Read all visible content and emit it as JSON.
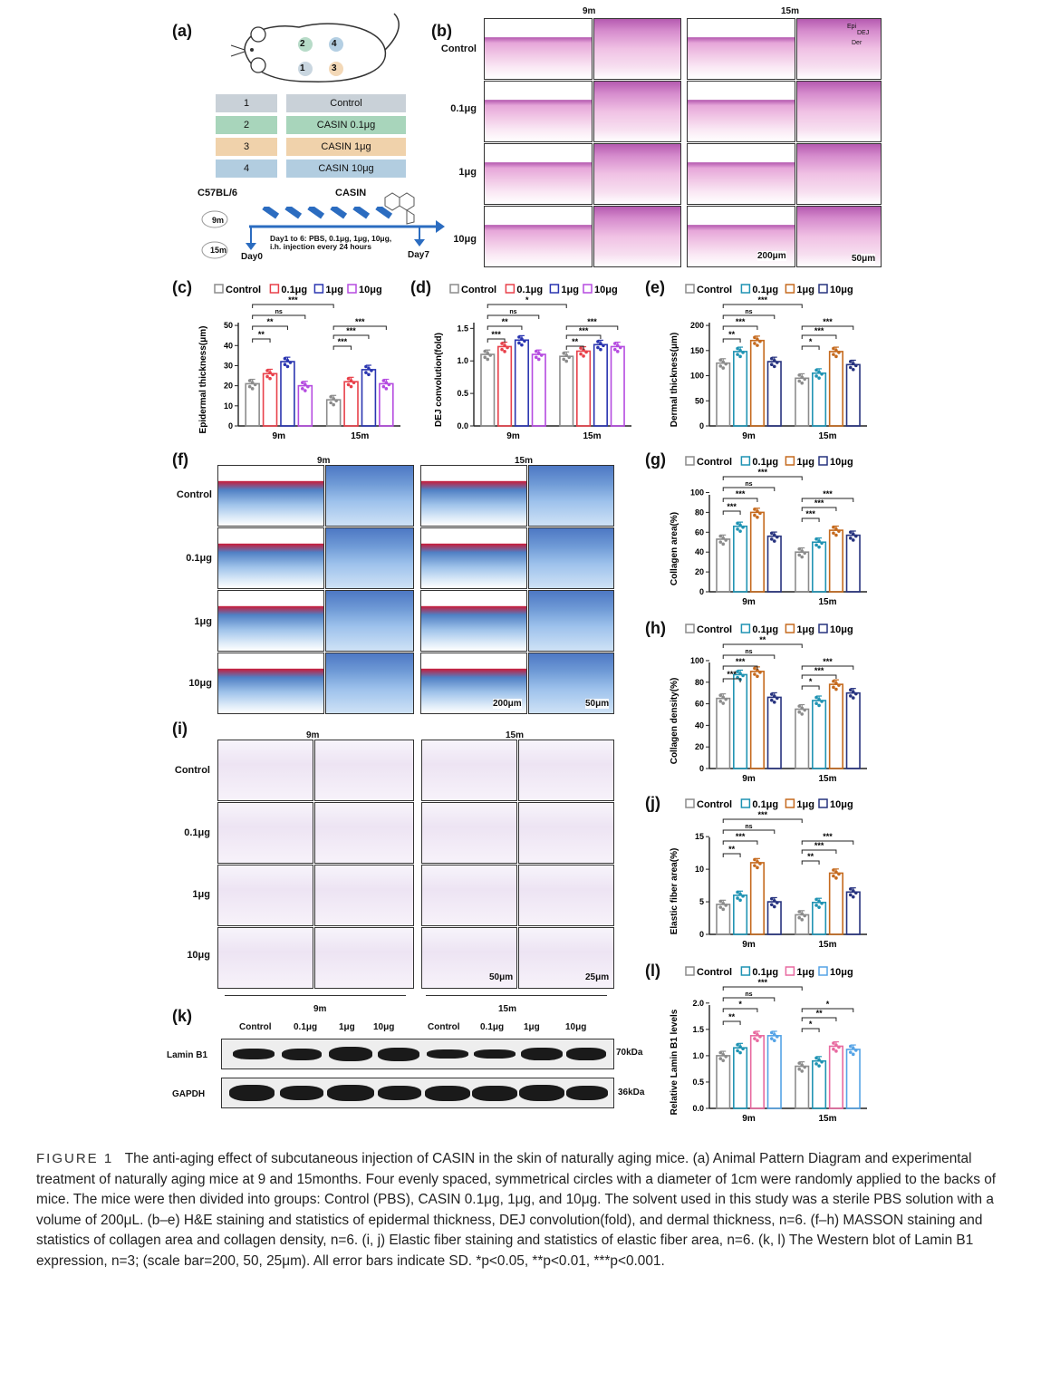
{
  "panel_labels": {
    "a": "(a)",
    "b": "(b)",
    "c": "(c)",
    "d": "(d)",
    "e": "(e)",
    "f": "(f)",
    "g": "(g)",
    "h": "(h)",
    "i": "(i)",
    "j": "(j)",
    "k": "(k)",
    "l": "(l)"
  },
  "panel_a": {
    "mouse_circles": [
      "2",
      "4",
      "1",
      "3"
    ],
    "table": [
      {
        "num": "1",
        "group": "Control"
      },
      {
        "num": "2",
        "group": "CASIN 0.1μg"
      },
      {
        "num": "3",
        "group": "CASIN  1μg"
      },
      {
        "num": "4",
        "group": "CASIN  10μg"
      }
    ],
    "strain": "C57BL/6",
    "drug": "CASIN",
    "age_9m": "9m",
    "age_15m": "15m",
    "day0": "Day0",
    "day7": "Day7",
    "protocol_line1": "Day1 to 6: PBS, 0.1μg, 1μg, 10μg,",
    "protocol_line2": "i.h. injection every 24 hours"
  },
  "histology": {
    "col_9m": "9m",
    "col_15m": "15m",
    "rows": [
      "Control",
      "0.1μg",
      "1μg",
      "10μg"
    ],
    "he_scale_a": "200μm",
    "he_scale_b": "50μm",
    "ms_scale_a": "200μm",
    "ms_scale_b": "50μm",
    "ef_scale_a": "50μm",
    "ef_scale_b": "25μm",
    "he_tags": [
      "Epi",
      "DEJ",
      "Der"
    ]
  },
  "legend_labels": {
    "control": "Control",
    "g01": "0.1μg",
    "g1": "1μg",
    "g10": "10μg"
  },
  "colors": {
    "control": "#8c8c8c",
    "c_01": "#e8404a",
    "c_1": "#2a35b0",
    "c_10": "#b54be0",
    "teal": "#1f93b3",
    "orange": "#c56a1e",
    "navy": "#27337f",
    "pink": "#e86aa0",
    "skyblue": "#55a3e6"
  },
  "chart_data": [
    {
      "id": "c",
      "type": "bar",
      "ylabel": "Epidermal thickness(μm)",
      "ylim": [
        0,
        55
      ],
      "yticks": [
        0,
        10,
        20,
        30,
        40,
        50
      ],
      "categories": [
        "9m",
        "15m"
      ],
      "series": [
        {
          "name": "Control",
          "values": [
            21,
            13
          ]
        },
        {
          "name": "0.1μg",
          "values": [
            26,
            22
          ]
        },
        {
          "name": "1μg",
          "values": [
            32,
            28
          ]
        },
        {
          "name": "10μg",
          "values": [
            20,
            21
          ]
        }
      ],
      "annotations": [
        "***",
        "ns",
        "**",
        "**",
        "***",
        "***",
        "***"
      ]
    },
    {
      "id": "d",
      "type": "bar",
      "ylabel": "DEJ convolution(fold)",
      "ylim": [
        0,
        1.7
      ],
      "yticks": [
        "0.0",
        "0.5",
        "1.0",
        "1.5"
      ],
      "categories": [
        "9m",
        "15m"
      ],
      "series": [
        {
          "name": "Control",
          "values": [
            1.1,
            1.07
          ]
        },
        {
          "name": "0.1μg",
          "values": [
            1.22,
            1.15
          ]
        },
        {
          "name": "1μg",
          "values": [
            1.32,
            1.25
          ]
        },
        {
          "name": "10μg",
          "values": [
            1.1,
            1.22
          ]
        }
      ],
      "annotations": [
        "*",
        "ns",
        "**",
        "***",
        "***",
        "***",
        "**"
      ]
    },
    {
      "id": "e",
      "type": "bar",
      "ylabel": "Dermal thickness(μm)",
      "ylim": [
        0,
        220
      ],
      "yticks": [
        0,
        50,
        100,
        150,
        200
      ],
      "categories": [
        "9m",
        "15m"
      ],
      "series": [
        {
          "name": "Control",
          "values": [
            125,
            95
          ]
        },
        {
          "name": "0.1μg",
          "values": [
            148,
            105
          ]
        },
        {
          "name": "1μg",
          "values": [
            170,
            148
          ]
        },
        {
          "name": "10μg",
          "values": [
            128,
            122
          ]
        }
      ],
      "annotations": [
        "***",
        "ns",
        "***",
        "**",
        "***",
        "***",
        "*"
      ]
    },
    {
      "id": "g",
      "type": "bar",
      "ylabel": "Collagen area(%)",
      "ylim": [
        0,
        105
      ],
      "yticks": [
        0,
        20,
        40,
        60,
        80,
        100
      ],
      "categories": [
        "9m",
        "15m"
      ],
      "series": [
        {
          "name": "Control",
          "values": [
            53,
            40
          ]
        },
        {
          "name": "0.1μg",
          "values": [
            66,
            50
          ]
        },
        {
          "name": "1μg",
          "values": [
            80,
            62
          ]
        },
        {
          "name": "10μg",
          "values": [
            56,
            57
          ]
        }
      ],
      "annotations": [
        "***",
        "ns",
        "***",
        "***",
        "***",
        "***",
        "***"
      ]
    },
    {
      "id": "h",
      "type": "bar",
      "ylabel": "Collagen density(%)",
      "ylim": [
        0,
        105
      ],
      "yticks": [
        0,
        20,
        40,
        60,
        80,
        100
      ],
      "categories": [
        "9m",
        "15m"
      ],
      "series": [
        {
          "name": "Control",
          "values": [
            65,
            55
          ]
        },
        {
          "name": "0.1μg",
          "values": [
            87,
            63
          ]
        },
        {
          "name": "1μg",
          "values": [
            90,
            78
          ]
        },
        {
          "name": "10μg",
          "values": [
            66,
            70
          ]
        }
      ],
      "annotations": [
        "**",
        "ns",
        "***",
        "***",
        "***",
        "***",
        "*"
      ]
    },
    {
      "id": "j",
      "type": "bar",
      "ylabel": "Elastic fiber area(%)",
      "ylim": [
        0,
        16
      ],
      "yticks": [
        0,
        5,
        10,
        15
      ],
      "categories": [
        "9m",
        "15m"
      ],
      "series": [
        {
          "name": "Control",
          "values": [
            4.6,
            3
          ]
        },
        {
          "name": "0.1μg",
          "values": [
            6,
            4.9
          ]
        },
        {
          "name": "1μg",
          "values": [
            11,
            9.4
          ]
        },
        {
          "name": "10μg",
          "values": [
            5,
            6.5
          ]
        }
      ],
      "annotations": [
        "***",
        "ns",
        "***",
        "**",
        "***",
        "***",
        "**"
      ]
    },
    {
      "id": "l",
      "type": "bar",
      "ylabel": "Relative Lamin B1 levels",
      "ylim": [
        0,
        2.1
      ],
      "yticks": [
        "0.0",
        "0.5",
        "1.0",
        "1.5",
        "2.0"
      ],
      "categories": [
        "9m",
        "15m"
      ],
      "series": [
        {
          "name": "Control",
          "values": [
            1.0,
            0.8
          ]
        },
        {
          "name": "0.1μg",
          "values": [
            1.15,
            0.9
          ]
        },
        {
          "name": "1μg",
          "values": [
            1.38,
            1.18
          ]
        },
        {
          "name": "10μg",
          "values": [
            1.38,
            1.12
          ]
        }
      ],
      "annotations": [
        "***",
        "ns",
        "*",
        "**",
        "*",
        "**",
        "*"
      ]
    }
  ],
  "western": {
    "col_9m": "9m",
    "col_15m": "15m",
    "lanes": [
      "Control",
      "0.1μg",
      "1μg",
      "10μg",
      "Control",
      "0.1μg",
      "1μg",
      "10μg"
    ],
    "rows": [
      {
        "name": "Lamin B1",
        "kda": "70kDa"
      },
      {
        "name": "GAPDH",
        "kda": "36kDa"
      }
    ]
  },
  "caption": {
    "fig": "FIGURE 1",
    "text": "The anti-aging effect of subcutaneous injection of CASIN in the skin of naturally aging mice. (a) Animal Pattern Diagram and experimental treatment of naturally aging mice at 9 and 15months. Four evenly spaced, symmetrical circles with a diameter of 1cm were randomly applied to the backs of mice. The mice were then divided into groups: Control (PBS), CASIN 0.1μg, 1μg, and 10μg. The solvent used in this study was a sterile PBS solution with a volume of 200μL. (b–e) H&E staining and statistics of epidermal thickness, DEJ convolution(fold), and dermal thickness, n=6. (f–h) MASSON staining and statistics of collagen area and collagen density, n=6. (i, j) Elastic fiber staining and statistics of elastic fiber area, n=6. (k, l) The Western blot of Lamin B1 expression, n=3; (scale bar=200, 50, 25μm). All error bars indicate SD. *p<0.05, **p<0.01, ***p<0.001."
  }
}
